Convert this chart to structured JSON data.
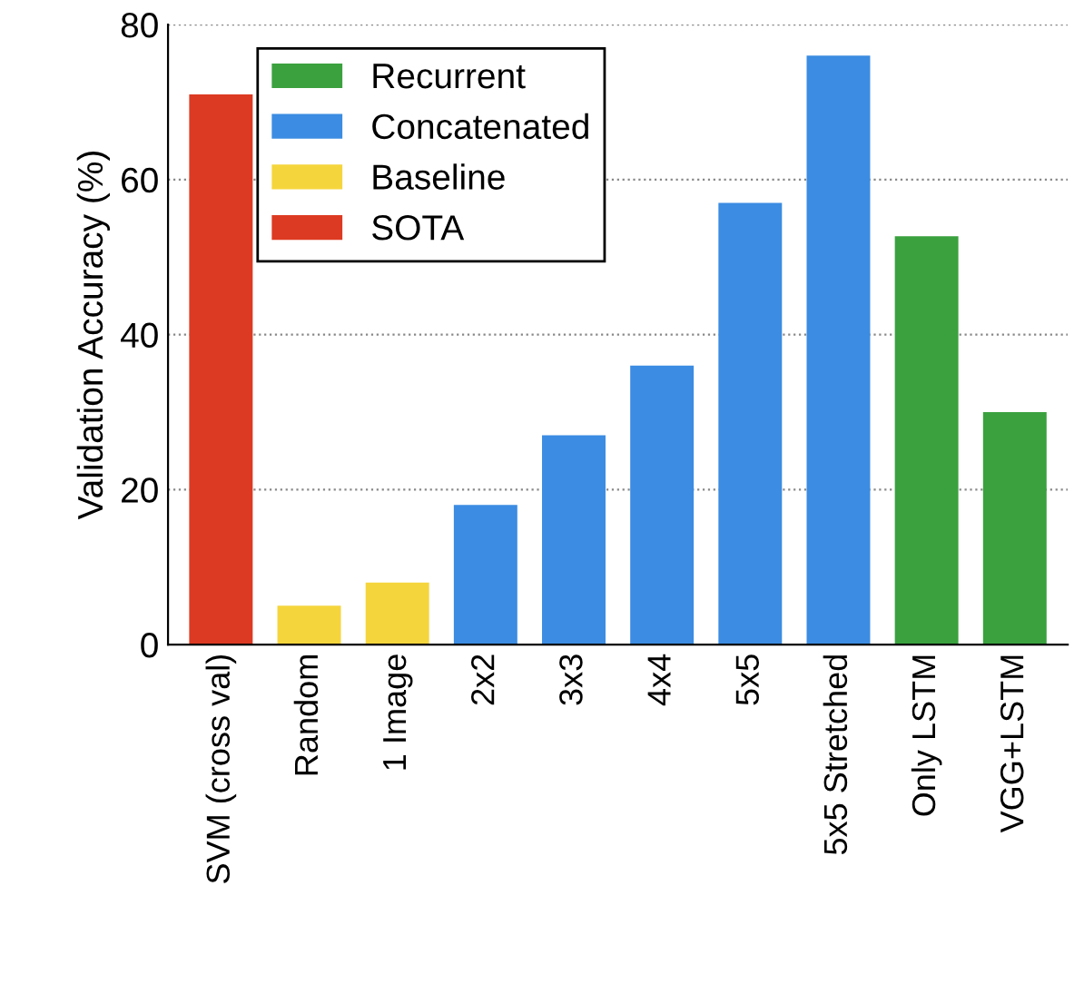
{
  "chart_data": {
    "type": "bar",
    "ylabel": "Validation Accuracy (%)",
    "categories": [
      "SVM (cross val)",
      "Random",
      "1 Image",
      "2x2",
      "3x3",
      "4x4",
      "5x5",
      "5x5 Stretched",
      "Only LSTM",
      "VGG+LSTM"
    ],
    "series": [
      {
        "name": "Recurrent",
        "color": "#3aa13e",
        "values": [
          null,
          null,
          null,
          null,
          null,
          null,
          null,
          null,
          52.7,
          30
        ]
      },
      {
        "name": "Concatenated",
        "color": "#3b8ce2",
        "values": [
          null,
          null,
          null,
          18,
          27,
          36,
          57,
          76,
          null,
          null
        ]
      },
      {
        "name": "Baseline",
        "color": "#f5d53c",
        "values": [
          null,
          5,
          8,
          null,
          null,
          null,
          null,
          null,
          null,
          null
        ]
      },
      {
        "name": "SOTA",
        "color": "#dc3a22",
        "values": [
          71,
          null,
          null,
          null,
          null,
          null,
          null,
          null,
          null,
          null
        ]
      }
    ],
    "ylim": [
      0,
      80
    ],
    "yticks": [
      0,
      20,
      40,
      60,
      80
    ],
    "grid": "y",
    "legend": "top left"
  }
}
